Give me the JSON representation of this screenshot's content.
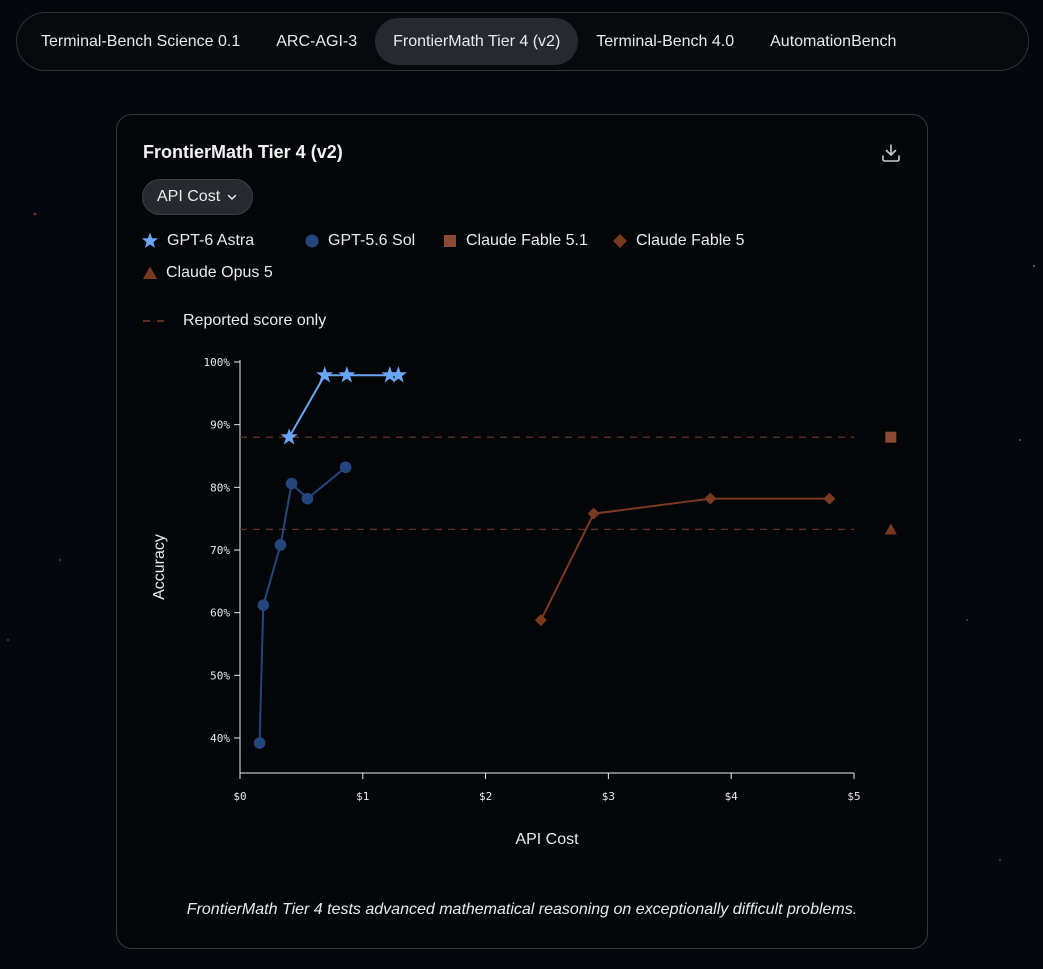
{
  "tabs": [
    {
      "label": "Terminal-Bench Science 0.1",
      "active": false
    },
    {
      "label": "ARC-AGI-3",
      "active": false
    },
    {
      "label": "FrontierMath Tier 4 (v2)",
      "active": true
    },
    {
      "label": "Terminal-Bench 4.0",
      "active": false
    },
    {
      "label": "AutomationBench",
      "active": false
    }
  ],
  "card": {
    "title": "FrontierMath Tier 4 (v2)",
    "download_icon": "download-icon",
    "metric_select": {
      "value": "API Cost",
      "icon": "chevron-down-icon"
    },
    "reference_legend": "Reported score only",
    "caption": "FrontierMath Tier 4 tests advanced mathematical reasoning on exceptionally difficult problems."
  },
  "colors": {
    "gpt6": "#6aa6f5",
    "gpt56": "#24467f",
    "fable51": "#8a4a33",
    "fable5": "#7a3a22",
    "opus5": "#7a3a22",
    "reference_line": "#6b3a2c",
    "axis": "#e8eaed"
  },
  "chart_data": {
    "type": "line",
    "xlabel": "API Cost",
    "ylabel": "Accuracy",
    "xlim": [
      0,
      5
    ],
    "ylim": [
      36,
      100
    ],
    "x_ticks": [
      {
        "value": 0,
        "label": "$0"
      },
      {
        "value": 1,
        "label": "$1"
      },
      {
        "value": 2,
        "label": "$2"
      },
      {
        "value": 3,
        "label": "$3"
      },
      {
        "value": 4,
        "label": "$4"
      },
      {
        "value": 5,
        "label": "$5"
      }
    ],
    "y_ticks": [
      {
        "value": 40,
        "label": "40%"
      },
      {
        "value": 50,
        "label": "50%"
      },
      {
        "value": 60,
        "label": "60%"
      },
      {
        "value": 70,
        "label": "70%"
      },
      {
        "value": 80,
        "label": "80%"
      },
      {
        "value": 90,
        "label": "90%"
      },
      {
        "value": 100,
        "label": "100%"
      }
    ],
    "series": [
      {
        "name": "GPT-6 Astra",
        "marker": "star",
        "color": "#6aa6f5",
        "points": [
          [
            0.4,
            88
          ],
          [
            0.69,
            97.9
          ],
          [
            0.87,
            97.9
          ],
          [
            1.22,
            97.9
          ],
          [
            1.29,
            97.9
          ]
        ]
      },
      {
        "name": "GPT-5.6 Sol",
        "marker": "circle",
        "color": "#24467f",
        "points": [
          [
            0.16,
            39.2
          ],
          [
            0.19,
            61.2
          ],
          [
            0.33,
            70.8
          ],
          [
            0.42,
            80.6
          ],
          [
            0.55,
            78.2
          ],
          [
            0.86,
            83.2
          ]
        ]
      },
      {
        "name": "Claude Fable 5.1",
        "marker": "square",
        "color": "#8a4a33",
        "reported_only": true,
        "points": [
          [
            5.3,
            88
          ]
        ]
      },
      {
        "name": "Claude Fable 5",
        "marker": "diamond",
        "color": "#7a3a22",
        "points": [
          [
            2.45,
            58.8
          ],
          [
            2.88,
            75.8
          ],
          [
            3.83,
            78.2
          ],
          [
            4.8,
            78.2
          ]
        ]
      },
      {
        "name": "Claude Opus 5",
        "marker": "triangle",
        "color": "#7a3a22",
        "reported_only": true,
        "points": [
          [
            5.3,
            73.3
          ]
        ]
      }
    ],
    "reference_lines": [
      88,
      73.3
    ],
    "grid": false
  }
}
